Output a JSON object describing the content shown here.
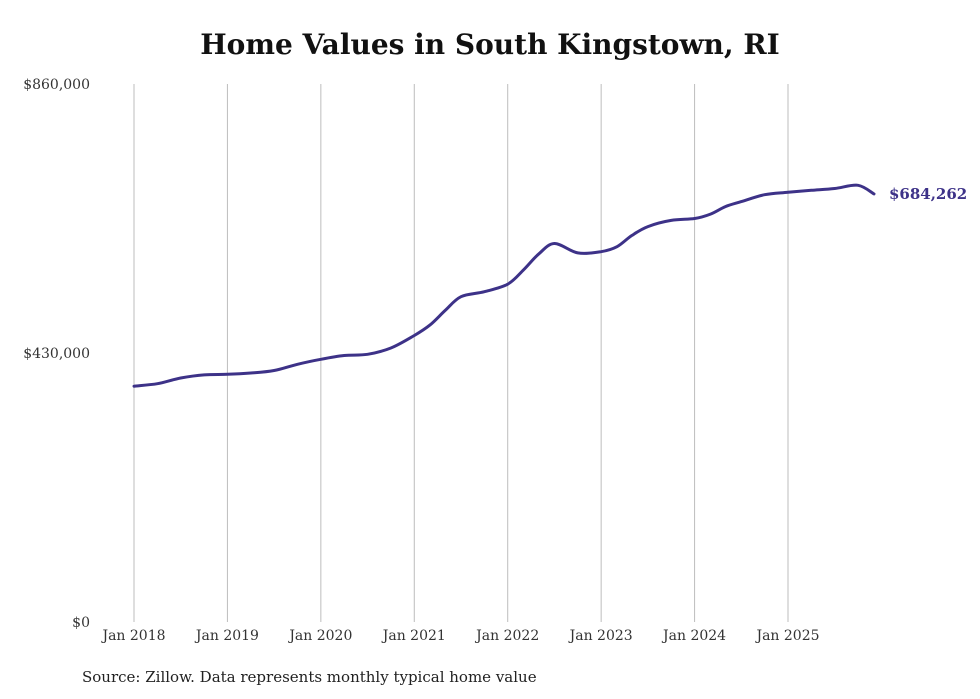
{
  "chart_data": {
    "type": "line",
    "title": "Home Values in South Kingstown, RI",
    "xlabel": "",
    "ylabel": "",
    "ylim": [
      0,
      860000
    ],
    "y_ticks": [
      0,
      430000,
      860000
    ],
    "y_tick_labels": [
      "$0",
      "$430,000",
      "$860,000"
    ],
    "x_ticks": [
      2018,
      2019,
      2020,
      2021,
      2022,
      2023,
      2024,
      2025
    ],
    "x_tick_labels": [
      "Jan 2018",
      "Jan 2019",
      "Jan 2020",
      "Jan 2021",
      "Jan 2022",
      "Jan 2023",
      "Jan 2024",
      "Jan 2025"
    ],
    "xlim": [
      2018,
      2025.95
    ],
    "grid": "vertical",
    "series": [
      {
        "name": "Typical home value",
        "color": "#3d3288",
        "x": [
          2018.0,
          2018.25,
          2018.5,
          2018.75,
          2019.0,
          2019.25,
          2019.5,
          2019.75,
          2020.0,
          2020.25,
          2020.5,
          2020.75,
          2021.0,
          2021.17,
          2021.33,
          2021.5,
          2021.75,
          2022.0,
          2022.17,
          2022.33,
          2022.5,
          2022.75,
          2023.0,
          2023.17,
          2023.33,
          2023.5,
          2023.75,
          2024.0,
          2024.17,
          2024.33,
          2024.5,
          2024.75,
          2025.0,
          2025.25,
          2025.5,
          2025.75,
          2025.92
        ],
        "values": [
          377000,
          381000,
          390000,
          395000,
          396000,
          398000,
          402000,
          412000,
          420000,
          426000,
          428000,
          438000,
          458000,
          475000,
          498000,
          520000,
          528000,
          540000,
          563000,
          588000,
          605000,
          590000,
          592000,
          600000,
          618000,
          632000,
          642000,
          645000,
          652000,
          664000,
          672000,
          683000,
          687000,
          690000,
          693000,
          698000,
          684262
        ]
      }
    ],
    "end_label": "$684,262",
    "source": "Source: Zillow. Data represents monthly typical home value"
  }
}
